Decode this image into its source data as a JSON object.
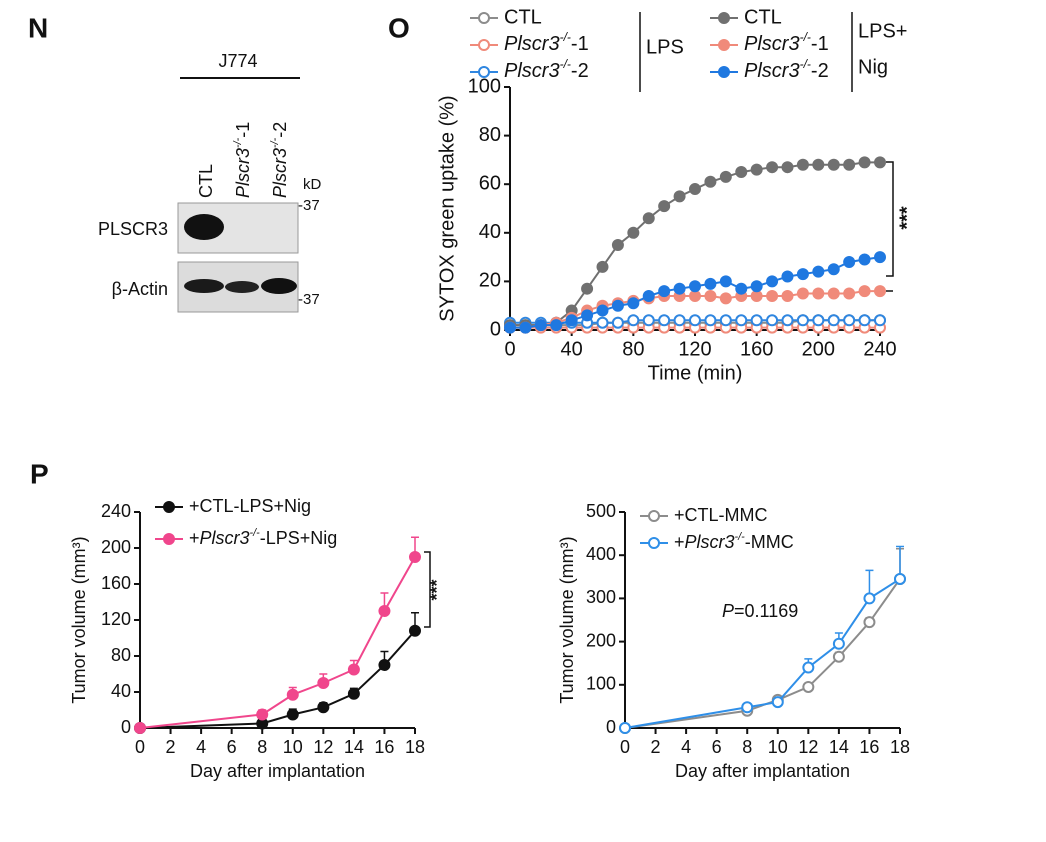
{
  "panel_labels": [
    "N",
    "O",
    "P"
  ],
  "blot": {
    "cell_line": "J774",
    "lanes": [
      "CTL",
      "Plscr3-/--1",
      "Plscr3-/--2"
    ],
    "unit": "kD",
    "markers": [
      "-37",
      "-37"
    ],
    "rows": [
      "PLSCR3",
      "β-Actin"
    ]
  },
  "chart_data": [
    {
      "type": "line",
      "x": [
        0,
        10,
        20,
        30,
        40,
        50,
        60,
        70,
        80,
        90,
        100,
        110,
        120,
        130,
        140,
        150,
        160,
        170,
        180,
        190,
        200,
        210,
        220,
        230,
        240
      ],
      "xlim": [
        0,
        240
      ],
      "xticks": [
        0,
        40,
        80,
        120,
        160,
        200,
        240
      ],
      "ylim": [
        0,
        100
      ],
      "yticks": [
        0,
        20,
        40,
        60,
        80,
        100
      ],
      "xlabel": "Time (min)",
      "ylabel": "SYTOX green uptake (%)",
      "legend_groups": [
        [
          "LPS"
        ],
        [
          "LPS+",
          "Nig"
        ]
      ],
      "annotations": [
        "***"
      ],
      "series": [
        {
          "name": "CTL",
          "color": "#8c8c8c",
          "marker": "open",
          "group": 0,
          "values": [
            2,
            2,
            2,
            2,
            2,
            2,
            3,
            3,
            3,
            3,
            3,
            3,
            3,
            3,
            3,
            3,
            3,
            3,
            3,
            4,
            4,
            4,
            4,
            4,
            4
          ]
        },
        {
          "name": "Plscr3-/--1",
          "color": "#f08a7a",
          "marker": "open",
          "group": 0,
          "values": [
            1,
            1,
            1,
            1,
            1,
            1,
            1,
            1,
            1,
            1,
            1,
            1,
            1,
            1,
            1,
            1,
            1,
            1,
            1,
            1,
            1,
            1,
            1,
            1,
            1
          ]
        },
        {
          "name": "Plscr3-/--2",
          "color": "#2f86e0",
          "marker": "open",
          "group": 0,
          "values": [
            3,
            3,
            3,
            3,
            3,
            3,
            3,
            3,
            4,
            4,
            4,
            4,
            4,
            4,
            4,
            4,
            4,
            4,
            4,
            4,
            4,
            4,
            4,
            4,
            4
          ]
        },
        {
          "name": "CTL",
          "color": "#707070",
          "marker": "filled",
          "group": 1,
          "values": [
            2,
            2,
            2,
            3,
            8,
            17,
            26,
            35,
            40,
            46,
            51,
            55,
            58,
            61,
            63,
            65,
            66,
            67,
            67,
            68,
            68,
            68,
            68,
            69,
            69
          ]
        },
        {
          "name": "Plscr3-/--1",
          "color": "#f08a7a",
          "marker": "filled",
          "group": 1,
          "values": [
            1,
            1,
            2,
            3,
            5,
            8,
            10,
            11,
            12,
            13,
            14,
            14,
            14,
            14,
            13,
            14,
            14,
            14,
            14,
            15,
            15,
            15,
            15,
            16,
            16
          ]
        },
        {
          "name": "Plscr3-/--2",
          "color": "#1f78e0",
          "marker": "filled",
          "group": 1,
          "values": [
            1,
            1,
            2,
            2,
            4,
            6,
            8,
            10,
            11,
            14,
            16,
            17,
            18,
            19,
            20,
            17,
            18,
            20,
            22,
            23,
            24,
            25,
            28,
            29,
            30
          ]
        }
      ]
    },
    {
      "type": "line",
      "x": [
        0,
        8,
        10,
        12,
        14,
        16,
        18
      ],
      "xlim": [
        0,
        18
      ],
      "xticks": [
        0,
        2,
        4,
        6,
        8,
        10,
        12,
        14,
        16,
        18
      ],
      "ylim": [
        0,
        240
      ],
      "yticks": [
        0,
        40,
        80,
        120,
        160,
        200,
        240
      ],
      "xlabel": "Day after implantation",
      "ylabel": "Tumor volume (mm³)",
      "annotations": [
        "***"
      ],
      "series": [
        {
          "name": "+CTL-LPS+Nig",
          "color": "#111111",
          "marker": "filled",
          "values": [
            0,
            5,
            15,
            23,
            38,
            70,
            108
          ],
          "errors": [
            0,
            5,
            6,
            5,
            6,
            15,
            20
          ]
        },
        {
          "name": "+Plscr3-/--LPS+Nig",
          "color": "#f0468c",
          "marker": "filled",
          "values": [
            0,
            15,
            37,
            50,
            65,
            130,
            190
          ],
          "errors": [
            0,
            5,
            8,
            10,
            10,
            20,
            22
          ]
        }
      ]
    },
    {
      "type": "line",
      "x": [
        0,
        8,
        10,
        12,
        14,
        16,
        18
      ],
      "xlim": [
        0,
        18
      ],
      "xticks": [
        0,
        2,
        4,
        6,
        8,
        10,
        12,
        14,
        16,
        18
      ],
      "ylim": [
        0,
        500
      ],
      "yticks": [
        0,
        100,
        200,
        300,
        400,
        500
      ],
      "xlabel": "Day after implantation",
      "ylabel": "Tumor volume (mm³)",
      "annotations": [
        "P=0.1169"
      ],
      "series": [
        {
          "name": "+CTL-MMC",
          "color": "#8c8c8c",
          "marker": "open",
          "values": [
            0,
            40,
            65,
            95,
            165,
            245,
            345
          ],
          "errors": [
            0,
            5,
            8,
            8,
            10,
            10,
            70
          ]
        },
        {
          "name": "+Plscr3-/--MMC",
          "color": "#2f8fe8",
          "marker": "open",
          "values": [
            0,
            48,
            60,
            140,
            195,
            300,
            345
          ],
          "errors": [
            0,
            5,
            8,
            20,
            25,
            65,
            75
          ]
        }
      ]
    }
  ]
}
